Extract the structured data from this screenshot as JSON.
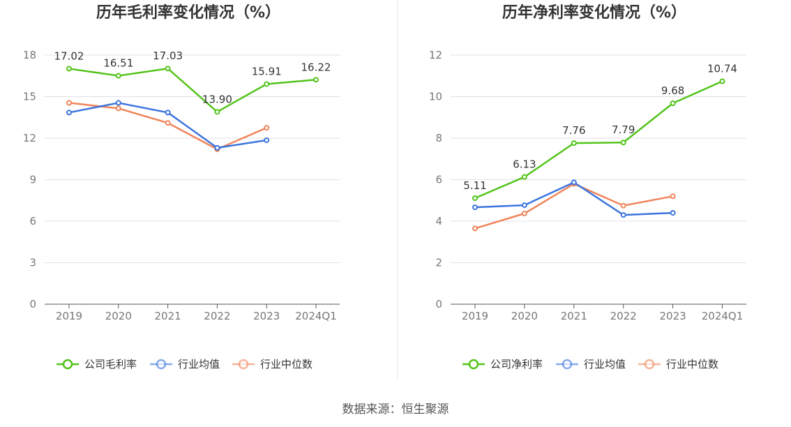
{
  "source": "数据来源：恒生聚源",
  "colors": {
    "company": "#52c41a",
    "industry_avg": "#3b74de",
    "industry_median": "#f0845a",
    "grid": "#e0e0e8",
    "axis": "#555555"
  },
  "chart_data": [
    {
      "type": "line",
      "title": "历年毛利率变化情况（%）",
      "categories": [
        "2019",
        "2020",
        "2021",
        "2022",
        "2023",
        "2024Q1"
      ],
      "ylim": [
        0,
        18
      ],
      "yticks": [
        0,
        3,
        6,
        9,
        12,
        15,
        18
      ],
      "grid": true,
      "legend_position": "bottom",
      "series": [
        {
          "name": "公司毛利率",
          "key": "company",
          "values": [
            17.02,
            16.51,
            17.03,
            13.9,
            15.91,
            16.22
          ],
          "labels": [
            "17.02",
            "16.51",
            "17.03",
            "13.90",
            "15.91",
            "16.22"
          ]
        },
        {
          "name": "行业均值",
          "key": "industry_avg",
          "values": [
            13.85,
            14.55,
            13.85,
            11.3,
            11.85,
            null
          ]
        },
        {
          "name": "行业中位数",
          "key": "industry_median",
          "values": [
            14.55,
            14.15,
            13.1,
            11.2,
            12.75,
            null
          ]
        }
      ]
    },
    {
      "type": "line",
      "title": "历年净利率变化情况（%）",
      "categories": [
        "2019",
        "2020",
        "2021",
        "2022",
        "2023",
        "2024Q1"
      ],
      "ylim": [
        0,
        12
      ],
      "yticks": [
        0,
        2,
        4,
        6,
        8,
        10,
        12
      ],
      "grid": true,
      "legend_position": "bottom",
      "series": [
        {
          "name": "公司净利率",
          "key": "company",
          "values": [
            5.11,
            6.13,
            7.76,
            7.79,
            9.68,
            10.74
          ],
          "labels": [
            "5.11",
            "6.13",
            "7.76",
            "7.79",
            "9.68",
            "10.74"
          ]
        },
        {
          "name": "行业均值",
          "key": "industry_avg",
          "values": [
            4.67,
            4.77,
            5.87,
            4.3,
            4.4,
            null
          ]
        },
        {
          "name": "行业中位数",
          "key": "industry_median",
          "values": [
            3.65,
            4.37,
            5.8,
            4.75,
            5.2,
            null
          ]
        }
      ]
    }
  ]
}
